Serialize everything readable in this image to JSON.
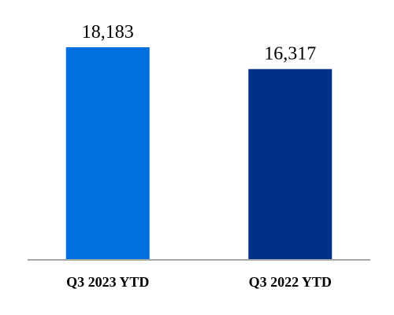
{
  "chart_data": {
    "type": "bar",
    "title": "",
    "xlabel": "",
    "ylabel": "",
    "categories": [
      "Q3 2023 YTD",
      "Q3 2022 YTD"
    ],
    "values": [
      18183,
      16317
    ],
    "value_labels": [
      "18,183",
      "16,317"
    ],
    "colors": [
      "#0070E0",
      "#003087"
    ],
    "ylim": [
      0,
      20000
    ],
    "grid": false,
    "legend": "none",
    "y_axis_visible": false
  }
}
